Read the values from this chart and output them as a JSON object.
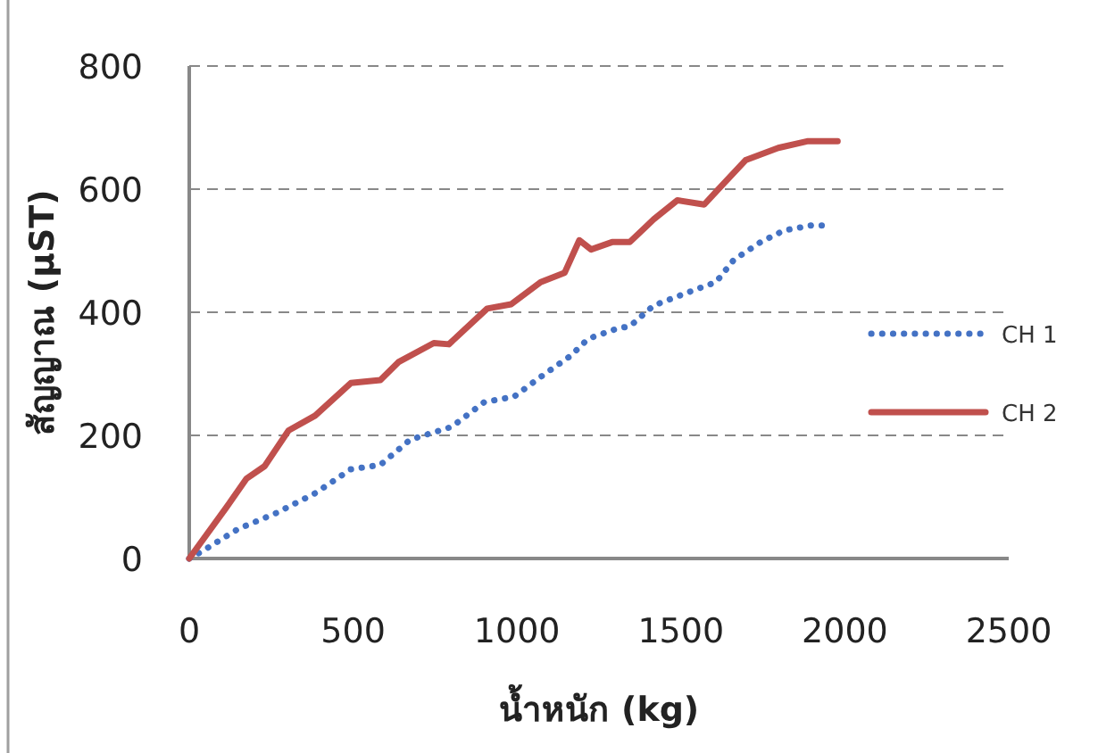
{
  "chart_data": {
    "type": "line",
    "xlabel": "น้ำหนัก (kg)",
    "ylabel": "สัญญาณ (µST)",
    "xlim": [
      0,
      2500
    ],
    "xticks": [
      0,
      500,
      1000,
      1500,
      2000,
      2500
    ],
    "ylim": [
      0,
      800
    ],
    "yticks": [
      0,
      200,
      400,
      600,
      800
    ],
    "grid": "y",
    "legend": "right",
    "series": [
      {
        "name": "CH 1",
        "color": "#4472c4",
        "line_style": "dotted",
        "x": [
          0,
          40,
          149,
          266,
          384,
          493,
          583,
          674,
          801,
          900,
          991,
          1072,
          1163,
          1217,
          1308,
          1344,
          1417,
          1525,
          1607,
          1661,
          1743,
          1815,
          1897,
          1942
        ],
        "values": [
          0,
          12,
          48,
          74,
          106,
          145,
          152,
          193,
          214,
          254,
          263,
          295,
          329,
          357,
          374,
          377,
          411,
          433,
          449,
          485,
          514,
          533,
          541,
          541
        ]
      },
      {
        "name": "CH 2",
        "color": "#c0504d",
        "line_style": "solid",
        "x": [
          0,
          112,
          175,
          230,
          303,
          384,
          493,
          583,
          638,
          746,
          792,
          909,
          982,
          1072,
          1145,
          1190,
          1226,
          1290,
          1344,
          1417,
          1489,
          1571,
          1616,
          1697,
          1797,
          1888,
          1978
        ],
        "values": [
          0,
          82,
          130,
          150,
          208,
          232,
          285,
          290,
          319,
          350,
          348,
          406,
          413,
          449,
          464,
          517,
          502,
          514,
          514,
          551,
          582,
          575,
          601,
          647,
          667,
          678,
          678
        ]
      }
    ]
  }
}
